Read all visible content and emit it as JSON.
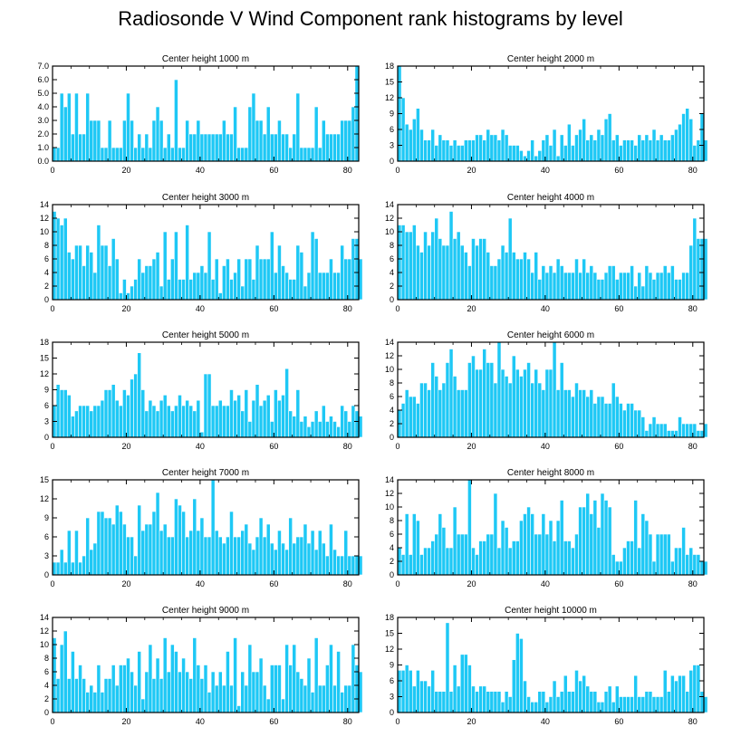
{
  "title": "Radiosonde V Wind Component rank histograms by level",
  "colors": {
    "bar": "#1ec8f5",
    "bar_edge": "#ffffff",
    "axis": "#000000"
  },
  "chart_data": [
    {
      "type": "bar",
      "title": "Center height 1000 m",
      "xlim": [
        0,
        83
      ],
      "ylim": [
        0,
        7
      ],
      "xticks": [
        "0",
        "20",
        "40",
        "60",
        "80"
      ],
      "yticks": [
        "0.0",
        "1.0",
        "2.0",
        "3.0",
        "4.0",
        "5.0",
        "6.0",
        "7.0"
      ],
      "values": [
        1,
        1,
        5,
        4,
        5,
        2,
        5,
        2,
        2,
        5,
        3,
        3,
        3,
        1,
        1,
        3,
        1,
        1,
        1,
        3,
        5,
        3,
        1,
        2,
        1,
        2,
        1,
        3,
        4,
        3,
        1,
        2,
        1,
        6,
        1,
        1,
        3,
        2,
        2,
        3,
        2,
        2,
        2,
        2,
        2,
        2,
        3,
        2,
        2,
        4,
        1,
        1,
        1,
        4,
        5,
        3,
        3,
        2,
        4,
        2,
        2,
        3,
        2,
        2,
        1,
        2,
        5,
        1,
        1,
        1,
        1,
        4,
        1,
        3,
        2,
        2,
        2,
        2,
        3,
        3,
        3,
        4,
        7
      ]
    },
    {
      "type": "bar",
      "title": "Center height 2000 m",
      "xlim": [
        0,
        83
      ],
      "ylim": [
        0,
        18
      ],
      "xticks": [
        "0",
        "20",
        "40",
        "60",
        "80"
      ],
      "yticks": [
        "0",
        "3",
        "6",
        "9",
        "12",
        "15",
        "18"
      ],
      "values": [
        18,
        12,
        7,
        6,
        8,
        10,
        6,
        4,
        4,
        6,
        3,
        5,
        4,
        4,
        3,
        4,
        3,
        3,
        4,
        4,
        4,
        5,
        5,
        4,
        6,
        5,
        5,
        4,
        6,
        5,
        3,
        3,
        3,
        2,
        1,
        2,
        4,
        1,
        2,
        4,
        5,
        3,
        6,
        1,
        5,
        3,
        7,
        3,
        5,
        6,
        8,
        4,
        5,
        4,
        6,
        5,
        8,
        9,
        4,
        5,
        3,
        4,
        4,
        4,
        3,
        5,
        4,
        5,
        4,
        6,
        4,
        5,
        4,
        4,
        5,
        6,
        7,
        9,
        10,
        8,
        3,
        4,
        9,
        4
      ]
    },
    {
      "type": "bar",
      "title": "Center height 3000 m",
      "xlim": [
        0,
        83
      ],
      "ylim": [
        0,
        14
      ],
      "xticks": [
        "0",
        "20",
        "40",
        "60",
        "80"
      ],
      "yticks": [
        "0",
        "2",
        "4",
        "6",
        "8",
        "10",
        "12",
        "14"
      ],
      "values": [
        13,
        12,
        11,
        12,
        7,
        6,
        8,
        8,
        5,
        8,
        7,
        4,
        11,
        8,
        8,
        5,
        9,
        6,
        1,
        3,
        1,
        2,
        3,
        6,
        4,
        5,
        5,
        6,
        7,
        2,
        10,
        3,
        6,
        10,
        3,
        3,
        11,
        3,
        4,
        4,
        5,
        4,
        10,
        3,
        6,
        1,
        5,
        6,
        3,
        4,
        6,
        2,
        6,
        6,
        3,
        8,
        6,
        6,
        6,
        10,
        4,
        8,
        5,
        4,
        3,
        3,
        8,
        7,
        2,
        4,
        10,
        9,
        4,
        4,
        4,
        6,
        4,
        4,
        8,
        6,
        6,
        9,
        9,
        6
      ]
    },
    {
      "type": "bar",
      "title": "Center height 4000 m",
      "xlim": [
        0,
        83
      ],
      "ylim": [
        0,
        14
      ],
      "xticks": [
        "0",
        "20",
        "40",
        "60",
        "80"
      ],
      "yticks": [
        "0",
        "2",
        "4",
        "6",
        "8",
        "10",
        "12",
        "14"
      ],
      "values": [
        11,
        11,
        10,
        10,
        11,
        8,
        7,
        10,
        8,
        10,
        12,
        9,
        8,
        8,
        13,
        9,
        10,
        8,
        7,
        5,
        9,
        8,
        9,
        9,
        7,
        5,
        5,
        6,
        8,
        7,
        12,
        7,
        6,
        6,
        7,
        6,
        4,
        7,
        3,
        5,
        4,
        5,
        4,
        6,
        5,
        4,
        4,
        4,
        6,
        4,
        6,
        4,
        5,
        4,
        3,
        3,
        4,
        5,
        5,
        3,
        4,
        4,
        4,
        5,
        2,
        4,
        2,
        5,
        4,
        3,
        4,
        4,
        5,
        4,
        5,
        3,
        3,
        4,
        4,
        8,
        12,
        9,
        9,
        9
      ]
    },
    {
      "type": "bar",
      "title": "Center height 5000 m",
      "xlim": [
        0,
        83
      ],
      "ylim": [
        0,
        18
      ],
      "xticks": [
        "0",
        "20",
        "40",
        "60",
        "80"
      ],
      "yticks": [
        "0",
        "3",
        "6",
        "9",
        "12",
        "15",
        "18"
      ],
      "values": [
        6,
        10,
        9,
        9,
        8,
        4,
        5,
        6,
        6,
        6,
        5,
        6,
        6,
        7,
        9,
        9,
        10,
        7,
        6,
        9,
        8,
        11,
        12,
        16,
        9,
        5,
        7,
        6,
        5,
        7,
        8,
        6,
        5,
        6,
        8,
        6,
        7,
        6,
        5,
        7,
        1,
        12,
        12,
        6,
        6,
        7,
        6,
        6,
        9,
        7,
        8,
        5,
        9,
        3,
        7,
        10,
        6,
        7,
        8,
        3,
        9,
        7,
        8,
        13,
        5,
        4,
        9,
        3,
        4,
        2,
        3,
        5,
        3,
        6,
        3,
        4,
        3,
        2,
        6,
        5,
        3,
        6,
        5,
        4
      ]
    },
    {
      "type": "bar",
      "title": "Center height 6000 m",
      "xlim": [
        0,
        83
      ],
      "ylim": [
        0,
        14
      ],
      "xticks": [
        "0",
        "20",
        "40",
        "60",
        "80"
      ],
      "yticks": [
        "0",
        "2",
        "4",
        "6",
        "8",
        "10",
        "12",
        "14"
      ],
      "values": [
        4,
        5,
        7,
        6,
        6,
        5,
        8,
        8,
        7,
        11,
        9,
        7,
        8,
        11,
        13,
        9,
        7,
        7,
        7,
        11,
        12,
        10,
        10,
        13,
        11,
        11,
        8,
        14,
        10,
        9,
        8,
        12,
        10,
        9,
        10,
        11,
        8,
        10,
        8,
        7,
        10,
        10,
        14,
        7,
        11,
        7,
        7,
        6,
        8,
        7,
        7,
        6,
        7,
        5,
        6,
        6,
        5,
        5,
        8,
        6,
        5,
        4,
        5,
        5,
        4,
        4,
        3,
        1,
        2,
        3,
        2,
        2,
        2,
        1,
        1,
        1,
        3,
        2,
        2,
        2,
        2,
        1,
        1,
        2
      ]
    },
    {
      "type": "bar",
      "title": "Center height 7000 m",
      "xlim": [
        0,
        83
      ],
      "ylim": [
        0,
        15
      ],
      "xticks": [
        "0",
        "20",
        "40",
        "60",
        "80"
      ],
      "yticks": [
        "0",
        "3",
        "6",
        "9",
        "12",
        "15"
      ],
      "values": [
        2,
        2,
        4,
        2,
        7,
        2,
        7,
        2,
        3,
        9,
        4,
        5,
        10,
        10,
        9,
        9,
        8,
        11,
        10,
        8,
        6,
        6,
        3,
        11,
        7,
        8,
        8,
        10,
        13,
        7,
        8,
        6,
        6,
        12,
        11,
        10,
        6,
        7,
        12,
        7,
        9,
        6,
        6,
        15,
        7,
        6,
        5,
        6,
        10,
        6,
        6,
        7,
        8,
        5,
        4,
        6,
        9,
        6,
        8,
        5,
        4,
        7,
        5,
        4,
        9,
        5,
        6,
        6,
        8,
        5,
        7,
        4,
        7,
        5,
        3,
        8,
        4,
        3,
        3,
        7,
        3,
        3,
        3,
        3
      ]
    },
    {
      "type": "bar",
      "title": "Center height 8000 m",
      "xlim": [
        0,
        83
      ],
      "ylim": [
        0,
        14
      ],
      "xticks": [
        "0",
        "20",
        "40",
        "60",
        "80"
      ],
      "yticks": [
        "0",
        "2",
        "4",
        "6",
        "8",
        "10",
        "12",
        "14"
      ],
      "values": [
        4,
        3,
        9,
        3,
        9,
        8,
        3,
        4,
        4,
        5,
        6,
        9,
        7,
        4,
        4,
        10,
        6,
        6,
        6,
        14,
        4,
        3,
        5,
        5,
        6,
        6,
        12,
        4,
        8,
        7,
        4,
        5,
        5,
        8,
        9,
        10,
        9,
        6,
        6,
        9,
        6,
        8,
        5,
        8,
        11,
        5,
        5,
        4,
        6,
        10,
        10,
        12,
        9,
        11,
        7,
        12,
        11,
        10,
        3,
        2,
        2,
        4,
        5,
        5,
        11,
        4,
        9,
        8,
        6,
        2,
        6,
        6,
        6,
        6,
        2,
        4,
        4,
        7,
        3,
        4,
        3,
        3,
        2,
        2
      ]
    },
    {
      "type": "bar",
      "title": "Center height 9000 m",
      "xlim": [
        0,
        83
      ],
      "ylim": [
        0,
        14
      ],
      "xticks": [
        "0",
        "20",
        "40",
        "60",
        "80"
      ],
      "yticks": [
        "0",
        "2",
        "4",
        "6",
        "8",
        "10",
        "12",
        "14"
      ],
      "values": [
        11,
        5,
        10,
        12,
        5,
        9,
        5,
        7,
        5,
        3,
        4,
        3,
        7,
        3,
        5,
        5,
        7,
        4,
        7,
        7,
        8,
        6,
        4,
        9,
        2,
        6,
        10,
        5,
        8,
        5,
        11,
        6,
        10,
        9,
        6,
        8,
        6,
        5,
        11,
        7,
        5,
        7,
        3,
        6,
        4,
        6,
        4,
        9,
        4,
        11,
        1,
        6,
        4,
        10,
        6,
        6,
        8,
        4,
        2,
        7,
        7,
        7,
        2,
        10,
        7,
        10,
        6,
        5,
        4,
        8,
        3,
        11,
        4,
        4,
        7,
        10,
        4,
        9,
        3,
        4,
        4,
        10,
        7,
        6
      ]
    },
    {
      "type": "bar",
      "title": "Center height 10000 m",
      "xlim": [
        0,
        83
      ],
      "ylim": [
        0,
        18
      ],
      "xticks": [
        "0",
        "20",
        "40",
        "60",
        "80"
      ],
      "yticks": [
        "0",
        "3",
        "6",
        "9",
        "12",
        "15",
        "18"
      ],
      "values": [
        8,
        8,
        9,
        8,
        5,
        8,
        6,
        6,
        5,
        8,
        4,
        4,
        4,
        17,
        4,
        9,
        5,
        11,
        11,
        9,
        5,
        4,
        5,
        5,
        4,
        4,
        4,
        4,
        2,
        4,
        3,
        10,
        15,
        14,
        6,
        3,
        2,
        2,
        4,
        4,
        2,
        3,
        6,
        3,
        4,
        7,
        4,
        4,
        8,
        6,
        7,
        5,
        4,
        4,
        2,
        2,
        4,
        5,
        2,
        5,
        3,
        3,
        3,
        3,
        7,
        3,
        3,
        4,
        4,
        3,
        3,
        3,
        8,
        4,
        7,
        6,
        7,
        7,
        4,
        8,
        9,
        9,
        4,
        3
      ]
    }
  ]
}
